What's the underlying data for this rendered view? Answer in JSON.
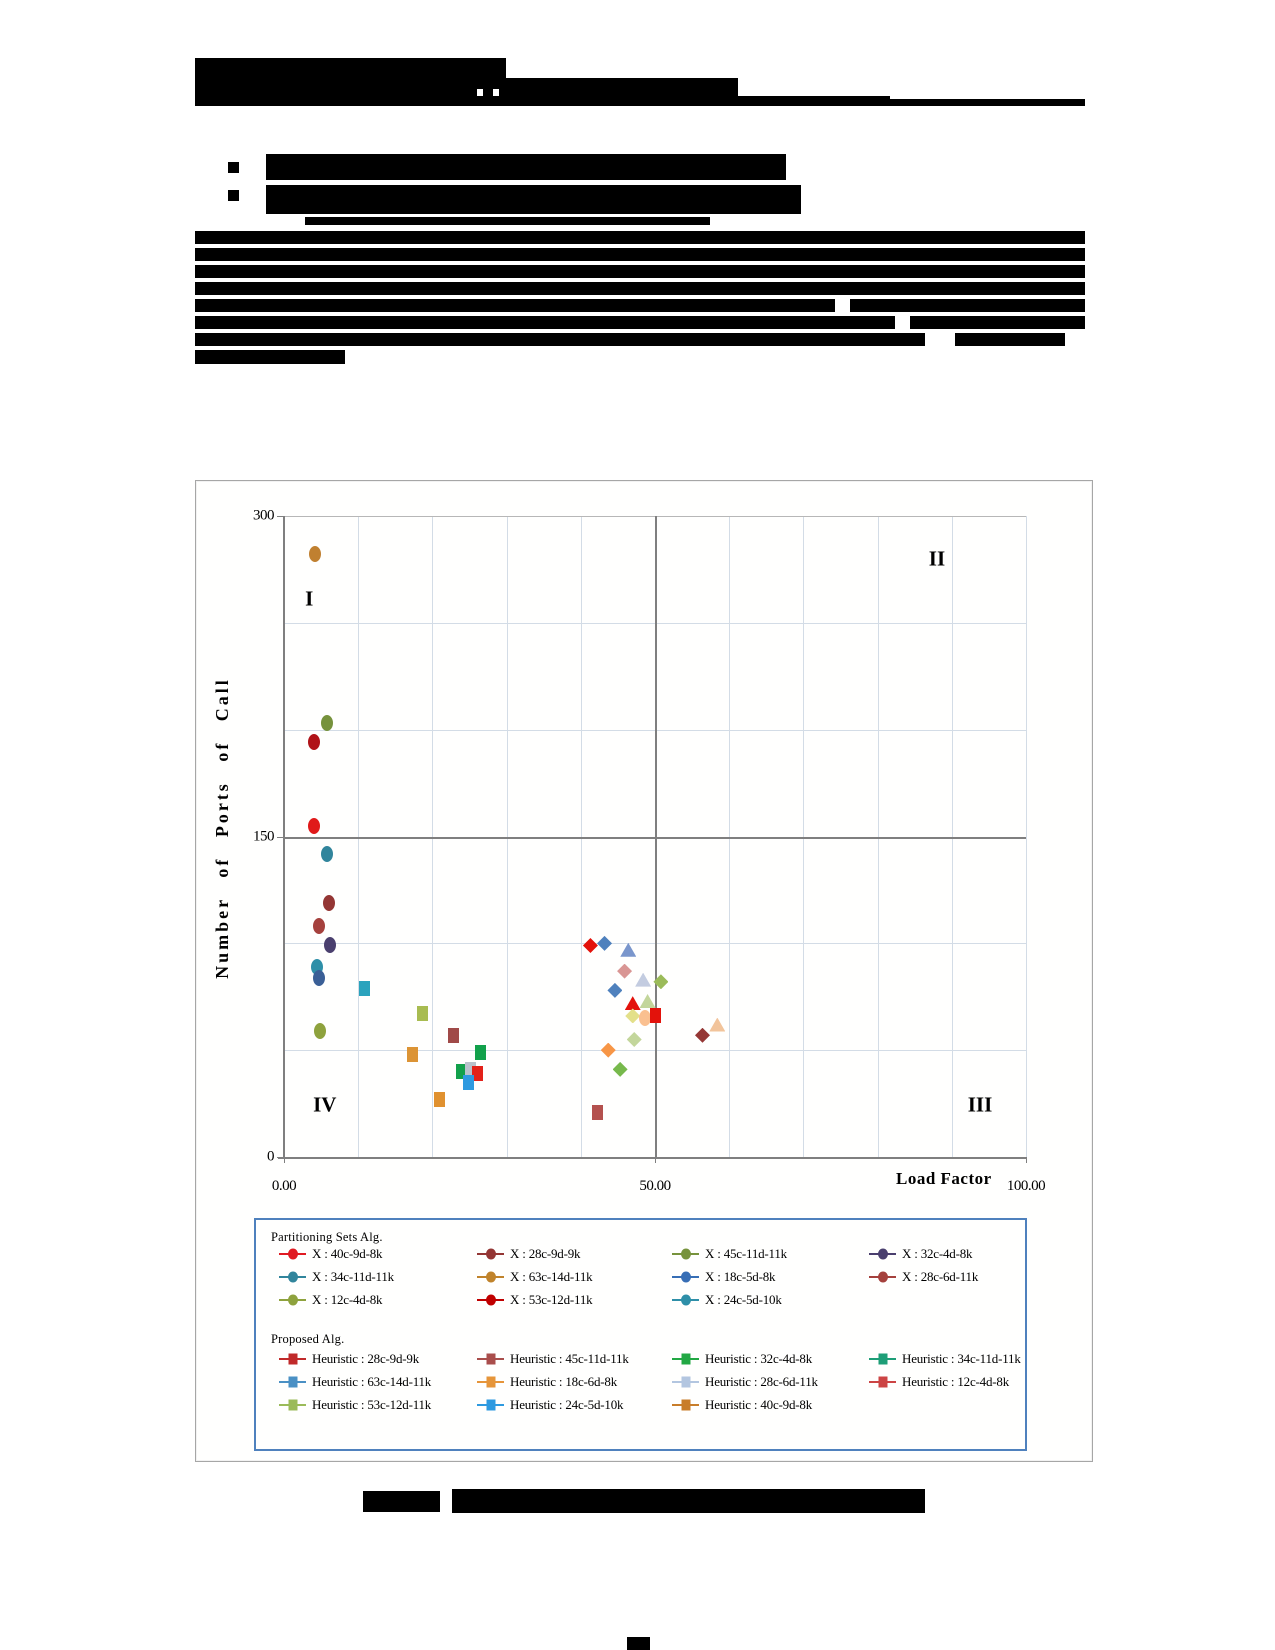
{
  "chart_data": {
    "type": "scatter",
    "title": "",
    "xlabel": "Load Factor",
    "ylabel": "Number of Ports of Call",
    "xlim": [
      0,
      100
    ],
    "ylim": [
      0,
      300
    ],
    "grid": {
      "x_step": 10,
      "y_step": 50,
      "grid_on": true
    },
    "dividers": {
      "x": 50,
      "y": 150
    },
    "x_ticks": [
      {
        "value": 0,
        "label": "0.00"
      },
      {
        "value": 50,
        "label": "50.00"
      },
      {
        "value": 100,
        "label": "100.00"
      }
    ],
    "y_ticks": [
      {
        "value": 0,
        "label": "0"
      },
      {
        "value": 150,
        "label": "150"
      },
      {
        "value": 300,
        "label": "300"
      }
    ],
    "quadrant_labels": [
      {
        "label": "I",
        "x": 3.4,
        "y": 261
      },
      {
        "label": "II",
        "x": 88.0,
        "y": 280
      },
      {
        "label": "III",
        "x": 93.8,
        "y": 24.5
      },
      {
        "label": "IV",
        "x": 5.5,
        "y": 24.5
      }
    ],
    "points": [
      {
        "x": 4.2,
        "y": 282,
        "shape": "circle",
        "color": "#c08030"
      },
      {
        "x": 5.8,
        "y": 203,
        "shape": "circle",
        "color": "#76923c"
      },
      {
        "x": 4.0,
        "y": 194,
        "shape": "circle",
        "color": "#b01318"
      },
      {
        "x": 4.1,
        "y": 155,
        "shape": "circle",
        "color": "#e01a1a"
      },
      {
        "x": 5.8,
        "y": 142,
        "shape": "circle",
        "color": "#31859c"
      },
      {
        "x": 6.0,
        "y": 119,
        "shape": "circle",
        "color": "#943634"
      },
      {
        "x": 4.7,
        "y": 108,
        "shape": "circle",
        "color": "#a5413d"
      },
      {
        "x": 6.2,
        "y": 99,
        "shape": "circle",
        "color": "#4a3f6e"
      },
      {
        "x": 4.5,
        "y": 89,
        "shape": "circle",
        "color": "#2e8fa8"
      },
      {
        "x": 4.7,
        "y": 84,
        "shape": "circle",
        "color": "#3a5f96"
      },
      {
        "x": 4.8,
        "y": 59,
        "shape": "circle",
        "color": "#8ea23d"
      },
      {
        "x": 10.8,
        "y": 79,
        "shape": "square",
        "color": "#2ba3bd"
      },
      {
        "x": 18.6,
        "y": 67,
        "shape": "square",
        "color": "#a8bc51"
      },
      {
        "x": 22.9,
        "y": 57,
        "shape": "square",
        "color": "#a04a48"
      },
      {
        "x": 17.3,
        "y": 48,
        "shape": "square",
        "color": "#dc9435"
      },
      {
        "x": 26.5,
        "y": 49,
        "shape": "square",
        "color": "#12a14b"
      },
      {
        "x": 23.9,
        "y": 40,
        "shape": "square",
        "color": "#12a14b"
      },
      {
        "x": 25.1,
        "y": 41,
        "shape": "square",
        "color": "#b9c2cc"
      },
      {
        "x": 26.1,
        "y": 39,
        "shape": "square",
        "color": "#e32119"
      },
      {
        "x": 24.8,
        "y": 35,
        "shape": "square",
        "color": "#2e9ae0"
      },
      {
        "x": 21.0,
        "y": 27,
        "shape": "square",
        "color": "#e0912f"
      },
      {
        "x": 42.2,
        "y": 21,
        "shape": "square",
        "color": "#b4514e"
      },
      {
        "x": 41.3,
        "y": 99,
        "shape": "diamond",
        "color": "#e3120b"
      },
      {
        "x": 43.2,
        "y": 100,
        "shape": "diamond",
        "color": "#4f81bd"
      },
      {
        "x": 46.4,
        "y": 97,
        "shape": "triangle",
        "color": "#7a96cc"
      },
      {
        "x": 45.9,
        "y": 87,
        "shape": "diamond",
        "color": "#d99694"
      },
      {
        "x": 48.4,
        "y": 83,
        "shape": "triangle",
        "color": "#c3cce0"
      },
      {
        "x": 50.8,
        "y": 82,
        "shape": "diamond",
        "color": "#9bbb59"
      },
      {
        "x": 44.6,
        "y": 78,
        "shape": "diamond",
        "color": "#4f81bd"
      },
      {
        "x": 47.0,
        "y": 72,
        "shape": "triangle",
        "color": "#e3120b"
      },
      {
        "x": 49.0,
        "y": 73,
        "shape": "triangle",
        "color": "#c3d69b"
      },
      {
        "x": 47.0,
        "y": 66,
        "shape": "diamond",
        "color": "#e3e08a"
      },
      {
        "x": 48.7,
        "y": 65,
        "shape": "circle",
        "color": "#fac090"
      },
      {
        "x": 50.0,
        "y": 66,
        "shape": "square",
        "color": "#e3120b"
      },
      {
        "x": 56.4,
        "y": 57,
        "shape": "diamond",
        "color": "#953735"
      },
      {
        "x": 58.4,
        "y": 62,
        "shape": "triangle",
        "color": "#f2c49b"
      },
      {
        "x": 43.7,
        "y": 50,
        "shape": "diamond",
        "color": "#f79646"
      },
      {
        "x": 47.2,
        "y": 55,
        "shape": "diamond",
        "color": "#c3d69b"
      },
      {
        "x": 45.3,
        "y": 41,
        "shape": "diamond",
        "color": "#77b94c"
      }
    ],
    "colors": {
      "grid": "#d3dce6",
      "axis": "#7f7f7f",
      "divider": "#7f7f7f",
      "legend_border": "#4f81bd"
    }
  },
  "legend": {
    "groups": [
      {
        "title": "Partitioning Sets Alg.",
        "marker": "circle",
        "entries": [
          {
            "label": "X : 40c-9d-8k",
            "color": "#e01a22"
          },
          {
            "label": "X : 28c-9d-9k",
            "color": "#943634"
          },
          {
            "label": "X : 45c-11d-11k",
            "color": "#77933c"
          },
          {
            "label": "X : 32c-4d-8k",
            "color": "#4a3f6e"
          },
          {
            "label": "X : 34c-11d-11k",
            "color": "#31859c"
          },
          {
            "label": "X : 63c-14d-11k",
            "color": "#c0832b"
          },
          {
            "label": "X : 18c-5d-8k",
            "color": "#376eb5"
          },
          {
            "label": "X : 28c-6d-11k",
            "color": "#a5413d"
          },
          {
            "label": "X : 12c-4d-8k",
            "color": "#8ea23d"
          },
          {
            "label": "X : 53c-12d-11k",
            "color": "#c00000"
          },
          {
            "label": "X : 24c-5d-10k",
            "color": "#2e8fa8"
          }
        ]
      },
      {
        "title": "Proposed Alg.",
        "marker": "square",
        "entries": [
          {
            "label": "Heuristic : 28c-9d-9k",
            "color": "#c02a2a"
          },
          {
            "label": "Heuristic : 45c-11d-11k",
            "color": "#a94e4c"
          },
          {
            "label": "Heuristic : 32c-4d-8k",
            "color": "#22a844"
          },
          {
            "label": "Heuristic : 34c-11d-11k",
            "color": "#1e9e77"
          },
          {
            "label": "Heuristic : 63c-14d-11k",
            "color": "#4a90c4"
          },
          {
            "label": "Heuristic : 18c-6d-8k",
            "color": "#e6953a"
          },
          {
            "label": "Heuristic : 28c-6d-11k",
            "color": "#b3c6e0"
          },
          {
            "label": "Heuristic : 12c-4d-8k",
            "color": "#cc4444"
          },
          {
            "label": "Heuristic : 53c-12d-11k",
            "color": "#9bbb59"
          },
          {
            "label": "Heuristic : 24c-5d-10k",
            "color": "#2e9ae0"
          },
          {
            "label": "Heuristic : 40c-9d-8k",
            "color": "#c87d2a"
          }
        ]
      }
    ]
  }
}
